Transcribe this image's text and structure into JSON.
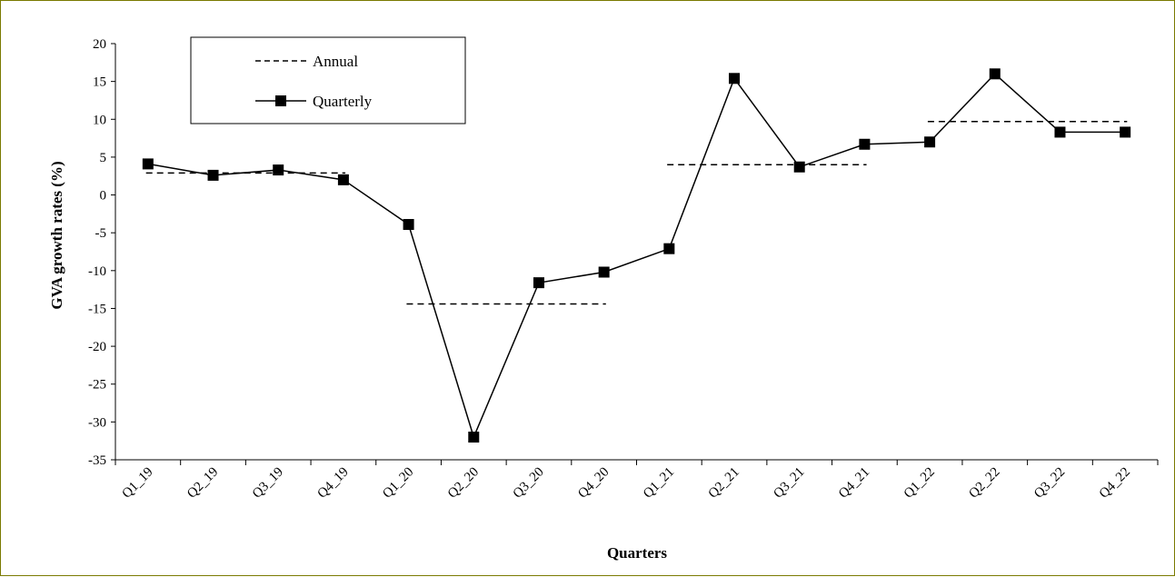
{
  "chart_data": {
    "type": "line",
    "xlabel": "Quarters",
    "ylabel": "GVA growth rates (%)",
    "ylim": [
      -35,
      20
    ],
    "yticks": [
      20,
      15,
      10,
      5,
      0,
      -5,
      -10,
      -15,
      -20,
      -25,
      -30,
      -35
    ],
    "categories": [
      "Q1_19",
      "Q2_19",
      "Q3_19",
      "Q4_19",
      "Q1_20",
      "Q2_20",
      "Q3_20",
      "Q4_20",
      "Q1_21",
      "Q2_21",
      "Q3_21",
      "Q4_21",
      "Q1_22",
      "Q2_22",
      "Q3_22",
      "Q4_22"
    ],
    "legend_position": "top-left",
    "grid": false,
    "series": [
      {
        "name": "Annual",
        "style": "dashed",
        "color": "#000000",
        "segments": [
          {
            "from": "Q1_19",
            "to": "Q4_19",
            "value": 2.9
          },
          {
            "from": "Q1_20",
            "to": "Q4_20",
            "value": -14.4
          },
          {
            "from": "Q1_21",
            "to": "Q4_21",
            "value": 4.0
          },
          {
            "from": "Q1_22",
            "to": "Q4_22",
            "value": 9.7
          }
        ]
      },
      {
        "name": "Quarterly",
        "style": "solid-square-markers",
        "color": "#000000",
        "values": [
          4.1,
          2.6,
          3.3,
          2.0,
          -3.9,
          -32.0,
          -11.6,
          -10.2,
          -7.1,
          15.4,
          3.7,
          6.7,
          7.0,
          16.0,
          8.3,
          8.3
        ]
      }
    ]
  }
}
